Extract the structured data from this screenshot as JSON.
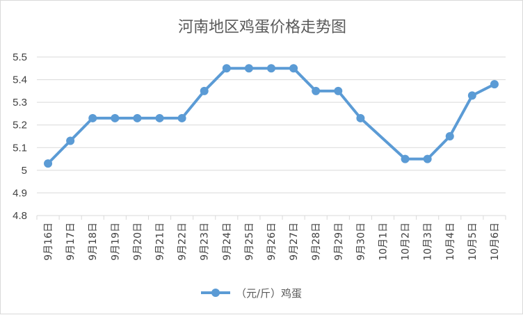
{
  "chart_data": {
    "type": "line",
    "title": "河南地区鸡蛋价格走势图",
    "categories": [
      "9月16日",
      "9月17日",
      "9月18日",
      "9月19日",
      "9月20日",
      "9月21日",
      "9月22日",
      "9月23日",
      "9月24日",
      "9月25日",
      "9月26日",
      "9月27日",
      "9月28日",
      "9月29日",
      "9月30日",
      "10月1日",
      "10月2日",
      "10月3日",
      "10月4日",
      "10月5日",
      "10月6日"
    ],
    "series": [
      {
        "name": "（元/斤）鸡蛋",
        "values": [
          5.03,
          5.13,
          5.23,
          5.23,
          5.23,
          5.23,
          5.23,
          5.35,
          5.45,
          5.45,
          5.45,
          5.45,
          5.35,
          5.35,
          5.23,
          null,
          5.05,
          5.05,
          5.15,
          5.33,
          5.38
        ],
        "color": "#5b9bd5"
      }
    ],
    "ylim": [
      4.8,
      5.5
    ],
    "yticks": [
      "4.8",
      "4.9",
      "5",
      "5.1",
      "5.2",
      "5.3",
      "5.4",
      "5.5"
    ],
    "grid": true,
    "legend_position": "bottom",
    "line_gaps": "connected"
  }
}
